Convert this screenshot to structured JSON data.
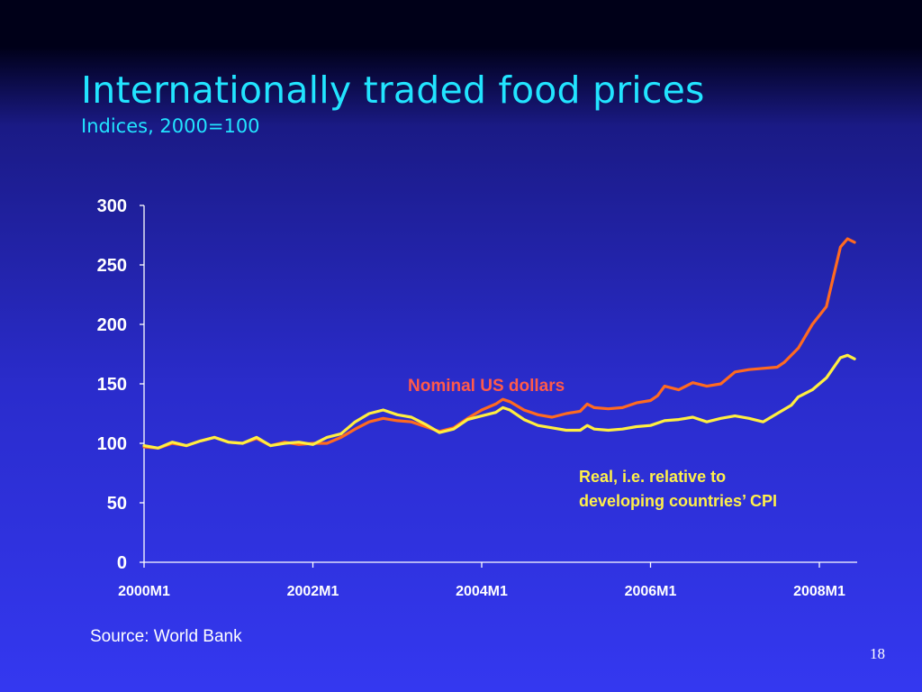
{
  "slide": {
    "title": "Internationally traded food prices",
    "subtitle": "Indices, 2000=100",
    "source": "Source: World Bank",
    "page_number": "18"
  },
  "chart_data": {
    "type": "line",
    "ylim": [
      0,
      300
    ],
    "yticks": [
      0,
      50,
      100,
      150,
      200,
      250,
      300
    ],
    "ytick_labels": [
      "0",
      "50",
      "100",
      "150",
      "200",
      "250",
      "300"
    ],
    "xticks": [
      "2000-01",
      "2002-01",
      "2004-01",
      "2006-01",
      "2008-01"
    ],
    "xtick_labels": [
      "2000M1",
      "2002M1",
      "2004M1",
      "2006M1",
      "2008M1"
    ],
    "grid": false,
    "legend": "none",
    "annotations": [
      {
        "series": "nominal",
        "lines": [
          "Nominal US dollars"
        ],
        "color": "#ff5a4a"
      },
      {
        "series": "real",
        "lines": [
          "Real, i.e. relative to",
          "developing countries’ CPI"
        ],
        "color": "#fff04a"
      }
    ],
    "series": [
      {
        "key": "nominal",
        "color": "#ff6a20",
        "points": [
          [
            "2000-01",
            97
          ],
          [
            "2000-03",
            96
          ],
          [
            "2000-05",
            100
          ],
          [
            "2000-07",
            98
          ],
          [
            "2000-09",
            102
          ],
          [
            "2000-11",
            105
          ],
          [
            "2001-01",
            101
          ],
          [
            "2001-03",
            100
          ],
          [
            "2001-05",
            104
          ],
          [
            "2001-07",
            98
          ],
          [
            "2001-09",
            101
          ],
          [
            "2001-11",
            99
          ],
          [
            "2002-01",
            100
          ],
          [
            "2002-03",
            100
          ],
          [
            "2002-05",
            105
          ],
          [
            "2002-07",
            112
          ],
          [
            "2002-09",
            118
          ],
          [
            "2002-11",
            121
          ],
          [
            "2003-01",
            119
          ],
          [
            "2003-03",
            118
          ],
          [
            "2003-05",
            114
          ],
          [
            "2003-07",
            110
          ],
          [
            "2003-09",
            113
          ],
          [
            "2003-11",
            121
          ],
          [
            "2004-01",
            128
          ],
          [
            "2004-03",
            133
          ],
          [
            "2004-04",
            137
          ],
          [
            "2004-05",
            135
          ],
          [
            "2004-07",
            128
          ],
          [
            "2004-09",
            124
          ],
          [
            "2004-11",
            122
          ],
          [
            "2005-01",
            125
          ],
          [
            "2005-03",
            127
          ],
          [
            "2005-04",
            133
          ],
          [
            "2005-05",
            130
          ],
          [
            "2005-07",
            129
          ],
          [
            "2005-09",
            130
          ],
          [
            "2005-11",
            134
          ],
          [
            "2006-01",
            136
          ],
          [
            "2006-02",
            140
          ],
          [
            "2006-03",
            148
          ],
          [
            "2006-05",
            145
          ],
          [
            "2006-07",
            151
          ],
          [
            "2006-09",
            148
          ],
          [
            "2006-11",
            150
          ],
          [
            "2007-01",
            160
          ],
          [
            "2007-03",
            162
          ],
          [
            "2007-05",
            163
          ],
          [
            "2007-07",
            164
          ],
          [
            "2007-08",
            168
          ],
          [
            "2007-10",
            180
          ],
          [
            "2007-12",
            200
          ],
          [
            "2008-02",
            215
          ],
          [
            "2008-04",
            265
          ],
          [
            "2008-05",
            272
          ],
          [
            "2008-06",
            269
          ]
        ]
      },
      {
        "key": "real",
        "color": "#ffee40",
        "points": [
          [
            "2000-01",
            98
          ],
          [
            "2000-03",
            96
          ],
          [
            "2000-05",
            101
          ],
          [
            "2000-07",
            98
          ],
          [
            "2000-09",
            102
          ],
          [
            "2000-11",
            105
          ],
          [
            "2001-01",
            101
          ],
          [
            "2001-03",
            100
          ],
          [
            "2001-05",
            105
          ],
          [
            "2001-07",
            98
          ],
          [
            "2001-09",
            100
          ],
          [
            "2001-11",
            101
          ],
          [
            "2002-01",
            99
          ],
          [
            "2002-03",
            105
          ],
          [
            "2002-05",
            108
          ],
          [
            "2002-07",
            118
          ],
          [
            "2002-09",
            125
          ],
          [
            "2002-11",
            128
          ],
          [
            "2003-01",
            124
          ],
          [
            "2003-03",
            122
          ],
          [
            "2003-05",
            116
          ],
          [
            "2003-07",
            109
          ],
          [
            "2003-09",
            112
          ],
          [
            "2003-11",
            120
          ],
          [
            "2004-01",
            123
          ],
          [
            "2004-03",
            126
          ],
          [
            "2004-04",
            130
          ],
          [
            "2004-05",
            128
          ],
          [
            "2004-07",
            120
          ],
          [
            "2004-09",
            115
          ],
          [
            "2004-11",
            113
          ],
          [
            "2005-01",
            111
          ],
          [
            "2005-03",
            111
          ],
          [
            "2005-04",
            115
          ],
          [
            "2005-05",
            112
          ],
          [
            "2005-07",
            111
          ],
          [
            "2005-09",
            112
          ],
          [
            "2005-11",
            114
          ],
          [
            "2006-01",
            115
          ],
          [
            "2006-03",
            119
          ],
          [
            "2006-05",
            120
          ],
          [
            "2006-07",
            122
          ],
          [
            "2006-09",
            118
          ],
          [
            "2006-11",
            121
          ],
          [
            "2007-01",
            123
          ],
          [
            "2007-03",
            121
          ],
          [
            "2007-05",
            118
          ],
          [
            "2007-07",
            125
          ],
          [
            "2007-09",
            132
          ],
          [
            "2007-10",
            139
          ],
          [
            "2007-12",
            145
          ],
          [
            "2008-02",
            155
          ],
          [
            "2008-04",
            172
          ],
          [
            "2008-05",
            174
          ],
          [
            "2008-06",
            171
          ]
        ]
      }
    ]
  }
}
